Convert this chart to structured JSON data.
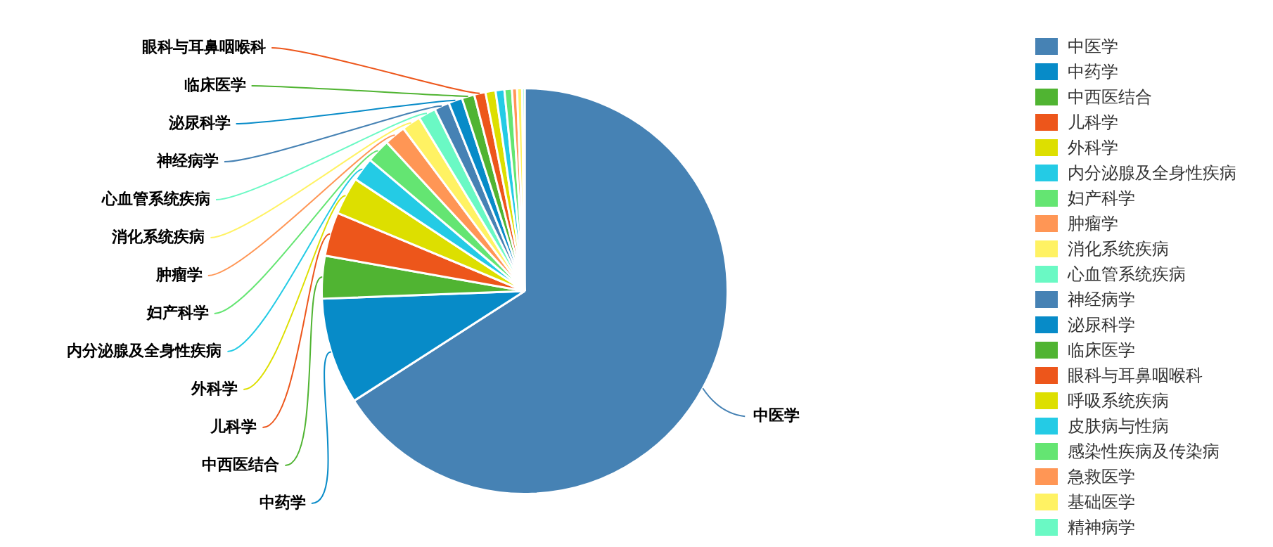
{
  "chart_data": {
    "type": "pie",
    "categories": [
      "中医学",
      "中药学",
      "中西医结合",
      "儿科学",
      "外科学",
      "内分泌腺及全身性疾病",
      "妇产科学",
      "肿瘤学",
      "消化系统疾病",
      "心血管系统疾病",
      "神经病学",
      "泌尿科学",
      "临床医学",
      "眼科与耳鼻咽喉科",
      "呼吸系统疾病",
      "皮肤病与性病",
      "感染性疾病及传染病",
      "急救医学",
      "基础医学",
      "精神病学"
    ],
    "values": [
      65.9,
      8.5,
      3.4,
      3.5,
      3.0,
      1.9,
      1.9,
      1.7,
      1.5,
      1.4,
      1.2,
      1.1,
      1.0,
      0.9,
      0.8,
      0.7,
      0.6,
      0.4,
      0.4,
      0.2
    ],
    "colors": [
      "#4682b4",
      "#078bc8",
      "#50b432",
      "#ed561b",
      "#dddf00",
      "#24cbe5",
      "#64e572",
      "#ff9655",
      "#fff263",
      "#6af9c4",
      "#4682b4",
      "#078bc8",
      "#50b432",
      "#ed561b",
      "#dddf00",
      "#24cbe5",
      "#64e572",
      "#ff9655",
      "#fff263",
      "#6af9c4"
    ],
    "legend": "right"
  }
}
